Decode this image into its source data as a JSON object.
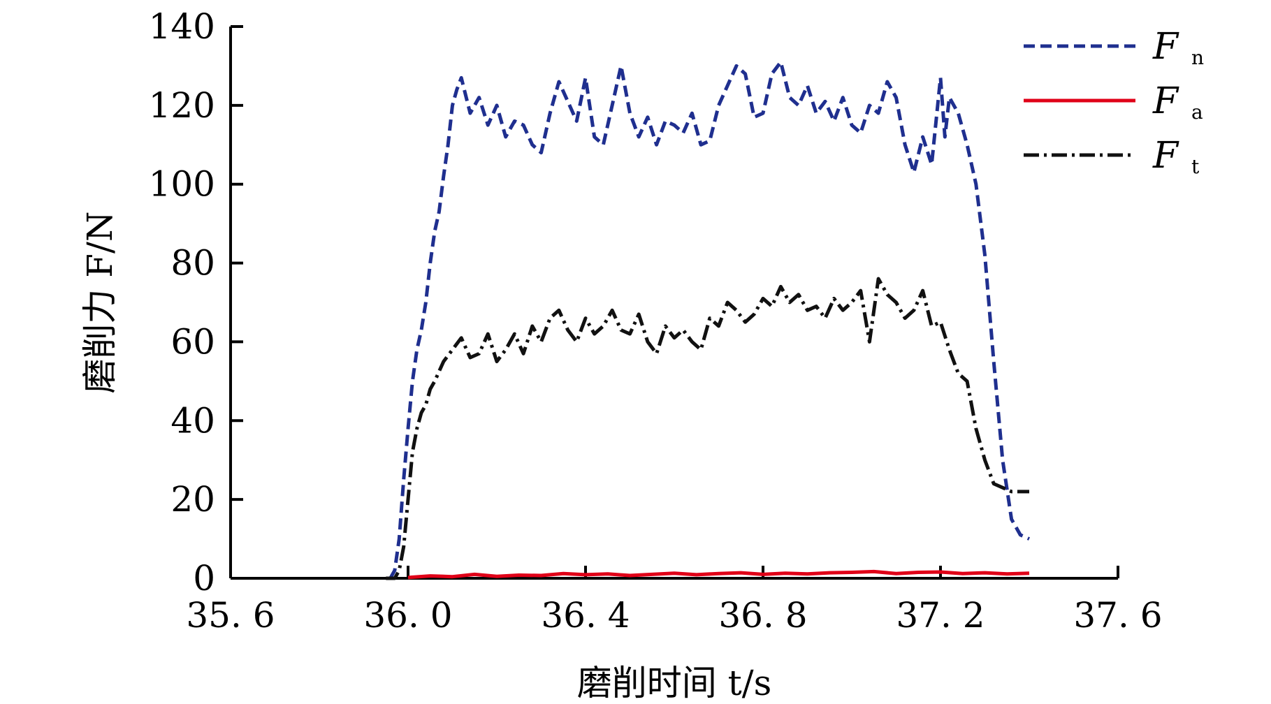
{
  "chart_data": {
    "type": "line",
    "xlabel": "磨削时间 t/s",
    "ylabel": "磨削力 F/N",
    "xlim": [
      35.6,
      37.6
    ],
    "ylim": [
      0,
      140
    ],
    "xticks": [
      35.6,
      36.0,
      36.4,
      36.8,
      37.2,
      37.6
    ],
    "xtick_labels": [
      "35. 6",
      "36. 0",
      "36. 4",
      "36. 8",
      "37. 2",
      "37. 6"
    ],
    "yticks": [
      0,
      20,
      40,
      60,
      80,
      100,
      120,
      140
    ],
    "ytick_labels": [
      "0",
      "20",
      "40",
      "60",
      "80",
      "100",
      "120",
      "140"
    ],
    "grid": false,
    "legend_position": "top-right",
    "series": [
      {
        "name": "F",
        "sub": "n",
        "color": "#1f2f8f",
        "style": "dashed",
        "x": [
          35.96,
          35.97,
          35.98,
          35.99,
          36.0,
          36.01,
          36.02,
          36.03,
          36.04,
          36.05,
          36.06,
          36.07,
          36.08,
          36.09,
          36.1,
          36.11,
          36.12,
          36.14,
          36.16,
          36.18,
          36.2,
          36.22,
          36.24,
          36.26,
          36.28,
          36.3,
          36.32,
          36.34,
          36.36,
          36.38,
          36.4,
          36.42,
          36.44,
          36.46,
          36.48,
          36.5,
          36.52,
          36.54,
          36.56,
          36.58,
          36.6,
          36.62,
          36.64,
          36.66,
          36.68,
          36.7,
          36.72,
          36.74,
          36.76,
          36.78,
          36.8,
          36.82,
          36.84,
          36.86,
          36.88,
          36.9,
          36.92,
          36.94,
          36.96,
          36.98,
          37.0,
          37.02,
          37.04,
          37.06,
          37.08,
          37.1,
          37.12,
          37.14,
          37.16,
          37.18,
          37.2,
          37.21,
          37.22,
          37.24,
          37.26,
          37.28,
          37.3,
          37.32,
          37.34,
          37.36,
          37.38,
          37.4
        ],
        "y": [
          0,
          2,
          10,
          25,
          38,
          50,
          58,
          63,
          70,
          80,
          88,
          93,
          102,
          110,
          120,
          124,
          127,
          118,
          122,
          115,
          120,
          112,
          116,
          115,
          110,
          108,
          118,
          126,
          121,
          116,
          127,
          112,
          110,
          120,
          130,
          118,
          112,
          117,
          110,
          116,
          115,
          113,
          118,
          110,
          111,
          120,
          125,
          130,
          128,
          117,
          118,
          128,
          131,
          122,
          120,
          125,
          118,
          121,
          116,
          122,
          115,
          113,
          120,
          118,
          126,
          122,
          110,
          103,
          112,
          105,
          127,
          112,
          122,
          118,
          110,
          100,
          82,
          55,
          30,
          15,
          11,
          10
        ]
      },
      {
        "name": "F",
        "sub": "a",
        "color": "#e00018",
        "style": "solid",
        "x": [
          36.0,
          36.05,
          36.1,
          36.15,
          36.2,
          36.25,
          36.3,
          36.35,
          36.4,
          36.45,
          36.5,
          36.55,
          36.6,
          36.65,
          36.7,
          36.75,
          36.8,
          36.85,
          36.9,
          36.95,
          37.0,
          37.05,
          37.1,
          37.15,
          37.2,
          37.25,
          37.3,
          37.35,
          37.4
        ],
        "y": [
          0.2,
          0.6,
          0.4,
          1.0,
          0.5,
          0.8,
          0.7,
          1.2,
          0.9,
          1.1,
          0.7,
          1.0,
          1.3,
          0.9,
          1.2,
          1.4,
          1.0,
          1.3,
          1.1,
          1.4,
          1.5,
          1.7,
          1.2,
          1.5,
          1.6,
          1.2,
          1.4,
          1.1,
          1.3
        ]
      },
      {
        "name": "F",
        "sub": "t",
        "color": "#111111",
        "style": "dashdot",
        "x": [
          35.95,
          35.96,
          35.97,
          35.98,
          35.99,
          36.0,
          36.01,
          36.02,
          36.03,
          36.04,
          36.05,
          36.06,
          36.08,
          36.1,
          36.12,
          36.14,
          36.16,
          36.18,
          36.2,
          36.22,
          36.24,
          36.26,
          36.28,
          36.3,
          36.32,
          36.34,
          36.36,
          36.38,
          36.4,
          36.42,
          36.44,
          36.46,
          36.48,
          36.5,
          36.52,
          36.54,
          36.56,
          36.58,
          36.6,
          36.62,
          36.64,
          36.66,
          36.68,
          36.7,
          36.72,
          36.74,
          36.76,
          36.78,
          36.8,
          36.82,
          36.84,
          36.86,
          36.88,
          36.9,
          36.92,
          36.94,
          36.96,
          36.98,
          37.0,
          37.02,
          37.04,
          37.06,
          37.08,
          37.1,
          37.12,
          37.14,
          37.16,
          37.18,
          37.2,
          37.22,
          37.24,
          37.26,
          37.28,
          37.3,
          37.32,
          37.34,
          37.36,
          37.38,
          37.4
        ],
        "y": [
          0,
          0,
          0,
          2,
          8,
          20,
          32,
          38,
          42,
          44,
          48,
          50,
          55,
          58,
          61,
          56,
          57,
          62,
          55,
          58,
          62,
          57,
          64,
          60,
          66,
          68,
          63,
          60,
          66,
          62,
          64,
          68,
          63,
          62,
          67,
          60,
          57,
          64,
          61,
          63,
          60,
          58,
          66,
          64,
          70,
          68,
          65,
          67,
          71,
          69,
          74,
          70,
          72,
          68,
          69,
          66,
          71,
          68,
          70,
          73,
          60,
          76,
          72,
          70,
          66,
          68,
          73,
          64,
          65,
          58,
          52,
          50,
          38,
          30,
          24,
          23,
          22,
          22,
          22
        ]
      }
    ]
  }
}
